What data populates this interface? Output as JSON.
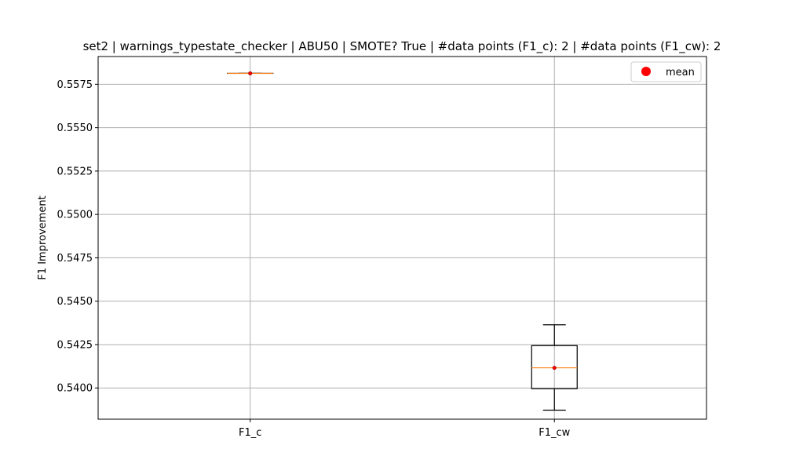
{
  "chart_data": {
    "type": "box",
    "title": "set2 | warnings_typestate_checker | ABU50 | SMOTE? True | #data points (F1_c): 2 | #data points (F1_cw): 2",
    "xlabel": "",
    "ylabel": "F1 Improvement",
    "ylim": [
      0.5382,
      0.5591
    ],
    "yticks": [
      0.54,
      0.5425,
      0.545,
      0.5475,
      0.55,
      0.5525,
      0.555,
      0.5575
    ],
    "ytick_labels": [
      "0.5400",
      "0.5425",
      "0.5450",
      "0.5475",
      "0.5500",
      "0.5525",
      "0.5550",
      "0.5575"
    ],
    "categories": [
      "F1_c",
      "F1_cw"
    ],
    "grid": true,
    "legend": {
      "position": "top-right",
      "entries": [
        "mean"
      ]
    },
    "colors": {
      "box": "#000000",
      "median": "#ff7f0e",
      "mean": "#ff0000",
      "grid": "#b0b0b0"
    },
    "boxes": [
      {
        "name": "F1_c",
        "whisker_low": 0.55813,
        "q1": 0.55813,
        "median": 0.55813,
        "q3": 0.55813,
        "whisker_high": 0.55813,
        "mean": 0.55813
      },
      {
        "name": "F1_cw",
        "whisker_low": 0.53872,
        "q1": 0.53996,
        "median": 0.54116,
        "q3": 0.54244,
        "whisker_high": 0.54364,
        "mean": 0.54116
      }
    ]
  }
}
